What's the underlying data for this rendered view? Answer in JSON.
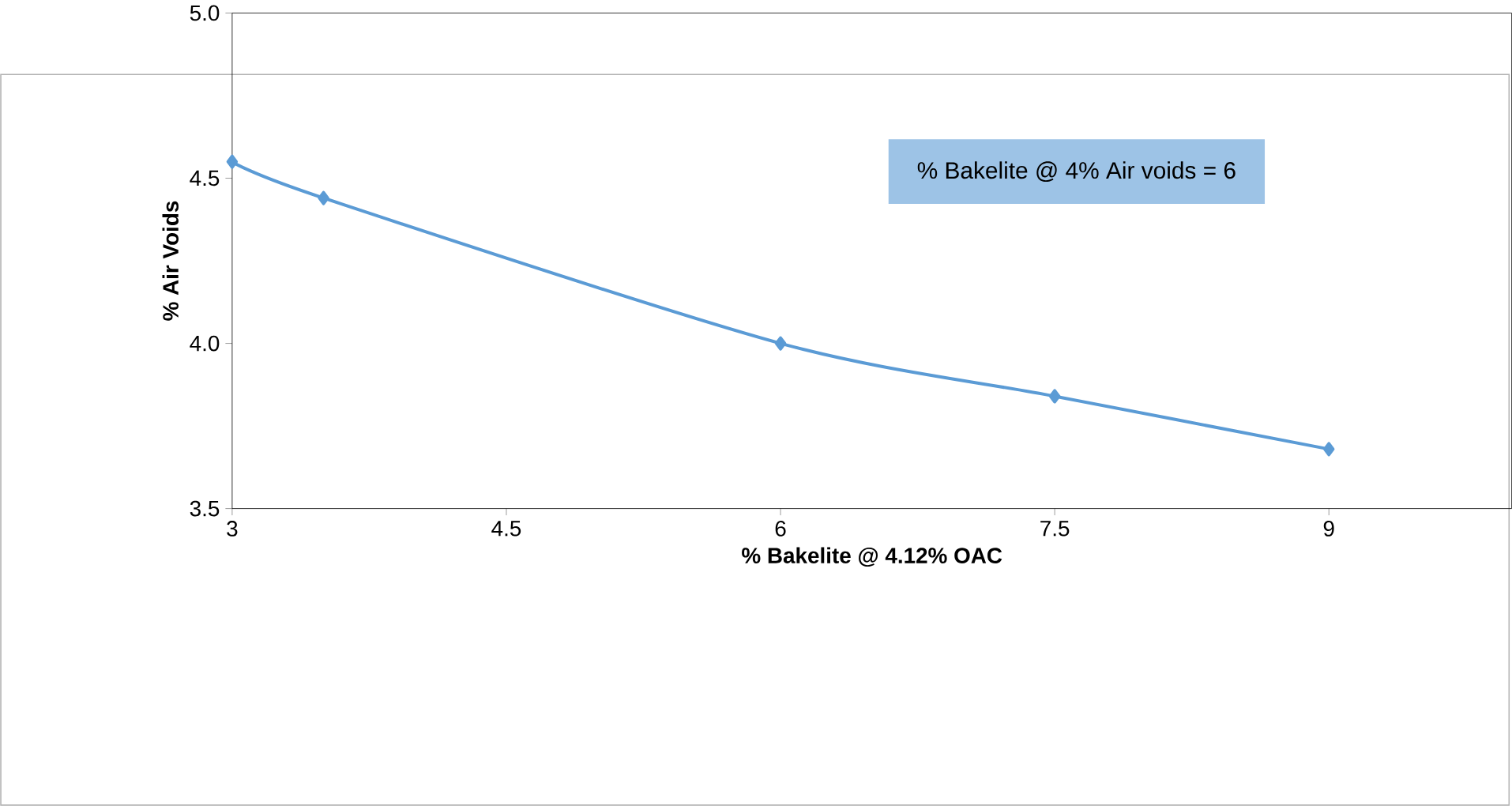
{
  "chart_data": {
    "type": "line",
    "xlabel": "% Bakelite @ 4.12% OAC",
    "ylabel": "% Air Voids",
    "x": [
      3,
      3.5,
      6,
      7.5,
      9
    ],
    "series": [
      {
        "color": "#5b9bd5",
        "values": [
          4.55,
          4.44,
          4.0,
          3.84,
          3.68
        ]
      }
    ],
    "xlim": [
      3,
      10
    ],
    "xticks": [
      3,
      4.5,
      6,
      7.5,
      9
    ],
    "ylim": [
      3.5,
      5.0
    ],
    "yticks": [
      {
        "value": 3.5,
        "label": "3.5"
      },
      {
        "value": 4.0,
        "label": "4.0"
      },
      {
        "value": 4.5,
        "label": "4.5"
      },
      {
        "value": 5.0,
        "label": "5.0"
      }
    ],
    "marker": "diamond",
    "grid": false,
    "annotations": [
      "% Bakelite @ 4% Air voids = 6"
    ]
  }
}
